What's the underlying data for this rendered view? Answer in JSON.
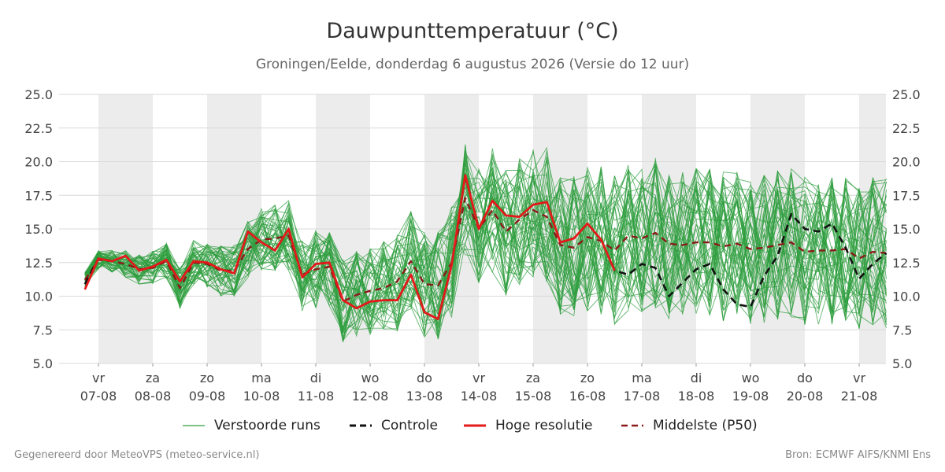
{
  "header": {
    "title": "Dauwpunttemperatuur (°C)",
    "subtitle": "Groningen/Eelde, donderdag  6 augustus 2026 (Versie do 12 uur)"
  },
  "footer": {
    "left": "Gegenereerd door MeteoVPS (meteo-service.nl)",
    "right": "Bron: ECMWF AIFS/KNMI Ens"
  },
  "legend": {
    "ensemble": "Verstoorde runs",
    "control": "Controle",
    "hires": "Hoge resolutie",
    "median": "Middelste (P50)"
  },
  "colors": {
    "ensemble": "#2e9e3e",
    "control": "#111111",
    "hires": "#e41a1a",
    "median": "#8b1a1a",
    "band": "#ececec",
    "grid": "#d9d9d9"
  },
  "chart_data": {
    "type": "line",
    "title": "Dauwpunttemperatuur (°C)",
    "ylim": [
      5.0,
      25.0
    ],
    "yticks": [
      "5.0",
      "7.5",
      "10.0",
      "12.5",
      "15.0",
      "17.5",
      "20.0",
      "22.5",
      "25.0"
    ],
    "xlim": [
      -0.25,
      14.5
    ],
    "xticks": [
      {
        "day": "vr",
        "date": "07-08"
      },
      {
        "day": "za",
        "date": "08-08"
      },
      {
        "day": "zo",
        "date": "09-08"
      },
      {
        "day": "ma",
        "date": "10-08"
      },
      {
        "day": "di",
        "date": "11-08"
      },
      {
        "day": "wo",
        "date": "12-08"
      },
      {
        "day": "do",
        "date": "13-08"
      },
      {
        "day": "vr",
        "date": "14-08"
      },
      {
        "day": "za",
        "date": "15-08"
      },
      {
        "day": "zo",
        "date": "16-08"
      },
      {
        "day": "ma",
        "date": "17-08"
      },
      {
        "day": "di",
        "date": "18-08"
      },
      {
        "day": "wo",
        "date": "19-08"
      },
      {
        "day": "do",
        "date": "20-08"
      },
      {
        "day": "vr",
        "date": "21-08"
      }
    ],
    "grid": true,
    "legend_position": "bottom",
    "series": [
      {
        "name": "Hoge resolutie",
        "x": [
          -0.25,
          0,
          0.25,
          0.5,
          0.75,
          1,
          1.25,
          1.5,
          1.75,
          2,
          2.25,
          2.5,
          2.75,
          3,
          3.25,
          3.5,
          3.75,
          4,
          4.25,
          4.5,
          4.75,
          5,
          5.25,
          5.5,
          5.75,
          6,
          6.25,
          6.5,
          6.75,
          7,
          7.25,
          7.5,
          7.75,
          8,
          8.25,
          8.5,
          8.75,
          9,
          9.25,
          9.5,
          9.75
        ],
        "values": [
          10.5,
          12.8,
          12.6,
          13.0,
          11.9,
          12.2,
          12.7,
          11.1,
          12.6,
          12.5,
          12.0,
          11.7,
          14.8,
          14.0,
          13.4,
          15.0,
          11.4,
          12.4,
          12.5,
          9.7,
          9.1,
          9.6,
          9.7,
          9.7,
          11.6,
          8.8,
          8.3,
          12.3,
          19.0,
          15.0,
          17.1,
          16.0,
          15.9,
          16.8,
          17.0,
          14.0,
          14.3,
          15.4,
          14.2,
          11.9,
          null
        ]
      },
      {
        "name": "Controle",
        "x": [
          -0.25,
          0,
          0.25,
          0.5,
          0.75,
          1,
          1.25,
          1.5,
          1.75,
          2,
          2.25,
          2.5,
          2.75,
          3,
          3.25,
          3.5,
          3.75,
          4,
          4.25,
          4.5,
          4.75,
          5,
          5.25,
          5.5,
          5.75,
          6,
          6.25,
          6.5,
          6.75,
          7,
          7.25,
          7.5,
          7.75,
          8,
          8.25,
          8.5,
          8.75,
          9,
          9.25,
          9.5,
          9.75,
          10,
          10.25,
          10.5,
          10.75,
          11,
          11.25,
          11.5,
          11.75,
          12,
          12.25,
          12.5,
          12.75,
          13,
          13.25,
          13.5,
          13.75,
          14,
          14.25,
          14.5
        ],
        "values": [
          10.9,
          12.8,
          12.6,
          13.0,
          11.9,
          12.2,
          12.7,
          11.1,
          12.6,
          12.5,
          12.0,
          11.7,
          14.8,
          14.0,
          13.4,
          15.0,
          11.4,
          12.4,
          12.5,
          9.7,
          9.1,
          9.6,
          9.7,
          9.7,
          11.6,
          8.8,
          8.3,
          12.3,
          19.0,
          15.0,
          17.1,
          16.0,
          15.9,
          16.8,
          17.0,
          14.0,
          14.3,
          15.4,
          14.2,
          11.9,
          11.6,
          12.4,
          12.1,
          10.0,
          11.0,
          12.0,
          12.4,
          10.5,
          9.4,
          9.2,
          11.5,
          13.0,
          16.1,
          15.0,
          14.8,
          15.4,
          13.6,
          11.3,
          12.4,
          13.2
        ]
      },
      {
        "name": "Middelste (P50)",
        "x": [
          -0.25,
          0,
          0.25,
          0.5,
          0.75,
          1,
          1.25,
          1.5,
          1.75,
          2,
          2.25,
          2.5,
          2.75,
          3,
          3.25,
          3.5,
          3.75,
          4,
          4.25,
          4.5,
          4.75,
          5,
          5.25,
          5.5,
          5.75,
          6,
          6.25,
          6.5,
          6.75,
          7,
          7.25,
          7.5,
          7.75,
          8,
          8.25,
          8.5,
          8.75,
          9,
          9.25,
          9.5,
          9.75,
          10,
          10.25,
          10.5,
          10.75,
          11,
          11.25,
          11.5,
          11.75,
          12,
          12.25,
          12.5,
          12.75,
          13,
          13.25,
          13.5,
          13.75,
          14,
          14.25,
          14.5
        ],
        "values": [
          11.2,
          12.7,
          12.6,
          12.4,
          12.0,
          12.1,
          12.6,
          10.6,
          12.5,
          12.4,
          11.9,
          11.9,
          13.5,
          14.2,
          14.3,
          14.5,
          11.6,
          12.0,
          12.2,
          9.6,
          10.1,
          10.4,
          10.6,
          11.1,
          12.6,
          10.9,
          10.8,
          12.5,
          17.3,
          15.0,
          16.4,
          14.8,
          15.7,
          16.4,
          15.9,
          13.8,
          13.6,
          14.4,
          14.1,
          13.4,
          14.5,
          14.3,
          14.7,
          13.9,
          13.8,
          14.0,
          14.0,
          13.7,
          13.9,
          13.5,
          13.6,
          13.8,
          14.0,
          13.3,
          13.4,
          13.4,
          13.5,
          12.8,
          13.3,
          13.2
        ]
      }
    ]
  }
}
